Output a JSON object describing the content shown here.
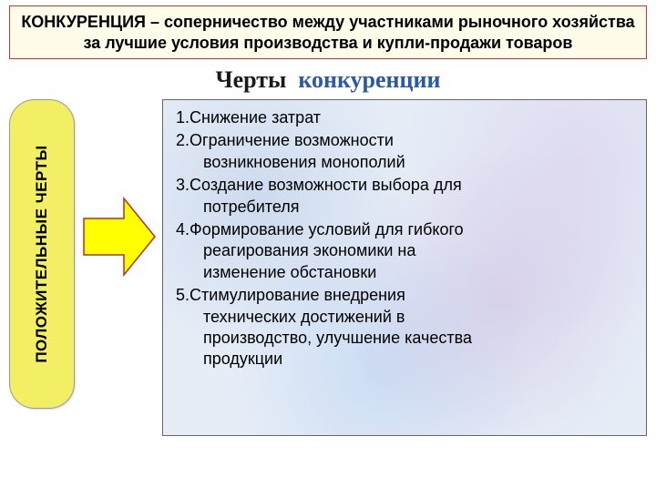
{
  "definition": {
    "term": "КОНКУРЕНЦИЯ",
    "sep": " – ",
    "text": "соперничество между участниками рыночного хозяйства за лучшие условия производства и купли-продажи товаров",
    "bg": "#fffde9",
    "border": "#c0392b",
    "fontsize": 18
  },
  "title": {
    "part1": "Черты",
    "part2": "конкуренции",
    "color1": "#1a1a1a",
    "color2": "#2b5aa0",
    "fontsize": 26
  },
  "pill": {
    "label": "ПОЛОЖИТЕЛЬНЫЕ ЧЕРТЫ",
    "bg": "#f2ef65",
    "border": "#999999",
    "radius": 28,
    "fontsize": 17
  },
  "arrow": {
    "fill": "#ffff00",
    "stroke": "#b03030",
    "stroke_width": 1.5,
    "width": 82,
    "height": 92
  },
  "list": {
    "border": "#666666",
    "bg_base": "#e6edf7",
    "fontsize": 18,
    "items": [
      {
        "n": "1.",
        "first": "Снижение затрат",
        "rest": []
      },
      {
        "n": "2.",
        "first": "Ограничение возможности",
        "rest": [
          "возникновения монополий"
        ]
      },
      {
        "n": "3.",
        "first": "Создание возможности выбора для",
        "rest": [
          "потребителя"
        ]
      },
      {
        "n": "4.",
        "first": "Формирование условий для гибкого",
        "rest": [
          "реагирования экономики на",
          "изменение обстановки"
        ]
      },
      {
        "n": "5.",
        "first": "Стимулирование внедрения",
        "rest": [
          "технических достижений в",
          "производство, улучшение качества",
          "продукции"
        ]
      }
    ]
  }
}
